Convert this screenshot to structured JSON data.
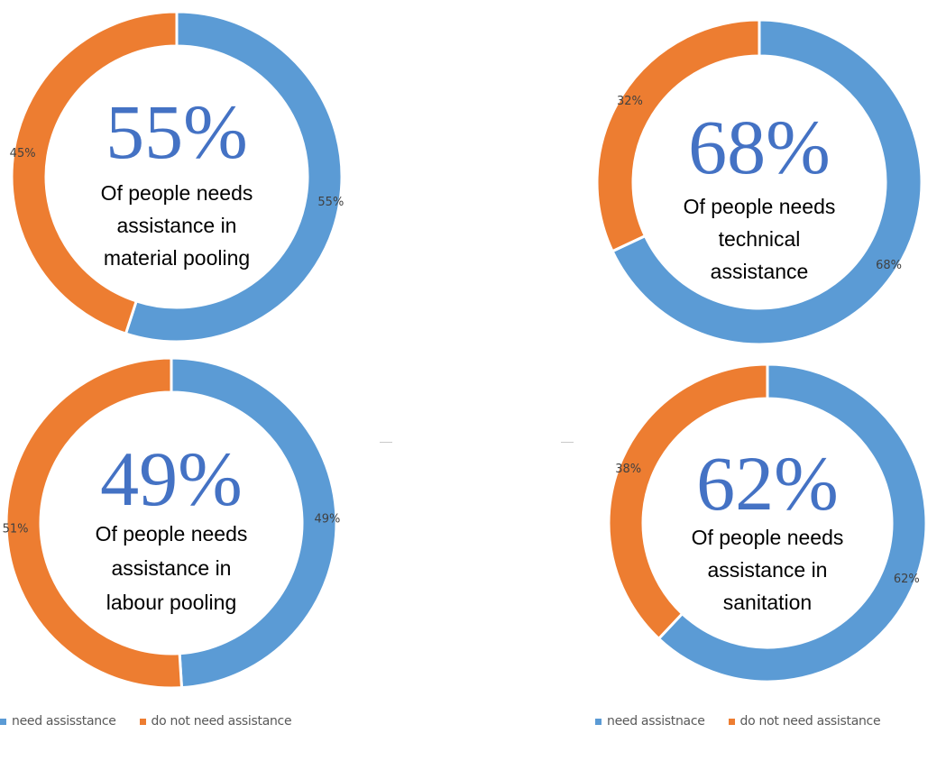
{
  "colors": {
    "need": "#5b9bd5",
    "not_need": "#ed7d31",
    "big_percent": "#4472c4",
    "slice_label": "#404040",
    "caption": "#000000"
  },
  "chart_data": [
    {
      "type": "pie",
      "donut": true,
      "headline": "55%",
      "caption_lines": [
        "Of people needs",
        "assistance in",
        "material pooling"
      ],
      "slices": [
        {
          "legend_key": "need",
          "value": 55,
          "label": "55%"
        },
        {
          "legend_key": "not_need",
          "value": 45,
          "label": "45%"
        }
      ]
    },
    {
      "type": "pie",
      "donut": true,
      "headline": "68%",
      "caption_lines": [
        "Of people needs",
        "technical",
        "assistance"
      ],
      "slices": [
        {
          "legend_key": "need",
          "value": 68,
          "label": "68%"
        },
        {
          "legend_key": "not_need",
          "value": 32,
          "label": "32%"
        }
      ]
    },
    {
      "type": "pie",
      "donut": true,
      "headline": "49%",
      "caption_lines": [
        "Of people needs",
        "assistance in",
        "labour pooling"
      ],
      "slices": [
        {
          "legend_key": "need",
          "value": 49,
          "label": "49%"
        },
        {
          "legend_key": "not_need",
          "value": 51,
          "label": "51%"
        }
      ]
    },
    {
      "type": "pie",
      "donut": true,
      "headline": "62%",
      "caption_lines": [
        "Of people needs",
        "assistance in",
        "sanitation"
      ],
      "slices": [
        {
          "legend_key": "need",
          "value": 62,
          "label": "62%"
        },
        {
          "legend_key": "not_need",
          "value": 38,
          "label": "38%"
        }
      ]
    }
  ],
  "legends": {
    "left": {
      "need": "need assisstance",
      "not_need": "do not need assistance"
    },
    "right": {
      "need": "need assistnace",
      "not_need": "do not need assistance"
    }
  }
}
